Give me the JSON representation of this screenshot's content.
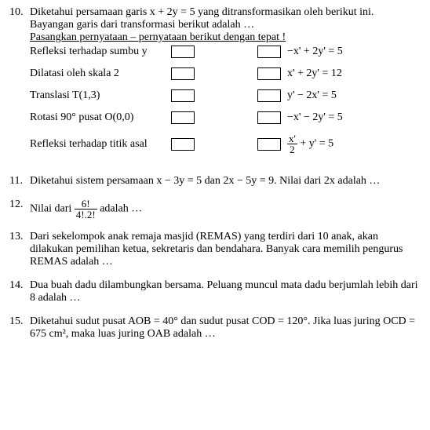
{
  "q10": {
    "num": "10.",
    "line1": "Diketahui persamaan garis x + 2y = 5 yang ditransformasikan oleh berikut ini.",
    "line2": "Bayangan garis dari transformasi berikut adalah …",
    "line3_a": "Pasangkan pernyataan – pernyataan berikut dengan tepat !",
    "rows": [
      {
        "left": "Refleksi terhadap sumbu y",
        "right": "−x' + 2y' = 5"
      },
      {
        "left": "Dilatasi oleh skala 2",
        "right": "x' + 2y' = 12"
      },
      {
        "left": "Translasi T(1,3)",
        "right": "y' − 2x' = 5"
      },
      {
        "left": "Rotasi 90° pusat O(0,0)",
        "right": "−x' − 2y' = 5"
      },
      {
        "left": "Refleksi terhadap titik asal",
        "right_frac": {
          "num": "x'",
          "den": "2"
        },
        "right_tail": " + y' = 5"
      }
    ]
  },
  "q11": {
    "num": "11.",
    "text": "Diketahui sistem persamaan x − 3y = 5 dan 2x − 5y = 9. Nilai dari 2x adalah …"
  },
  "q12": {
    "num": "12.",
    "pre": "Nilai dari ",
    "frac": {
      "num": "6!",
      "den": "4!.2!"
    },
    "post": " adalah …"
  },
  "q13": {
    "num": "13.",
    "text": "Dari sekelompok anak remaja masjid (REMAS) yang terdiri dari 10 anak, akan dilakukan pemilihan ketua, sekretaris dan bendahara. Banyak cara memilih pengurus REMAS adalah …"
  },
  "q14": {
    "num": "14.",
    "text": "Dua buah dadu dilambungkan bersama. Peluang muncul mata dadu berjumlah lebih dari 8 adalah …"
  },
  "q15": {
    "num": "15.",
    "text": "Diketahui sudut pusat AOB = 40° dan sudut pusat COD = 120°. Jika luas juring OCD = 675 cm², maka luas juring OAB adalah …"
  }
}
